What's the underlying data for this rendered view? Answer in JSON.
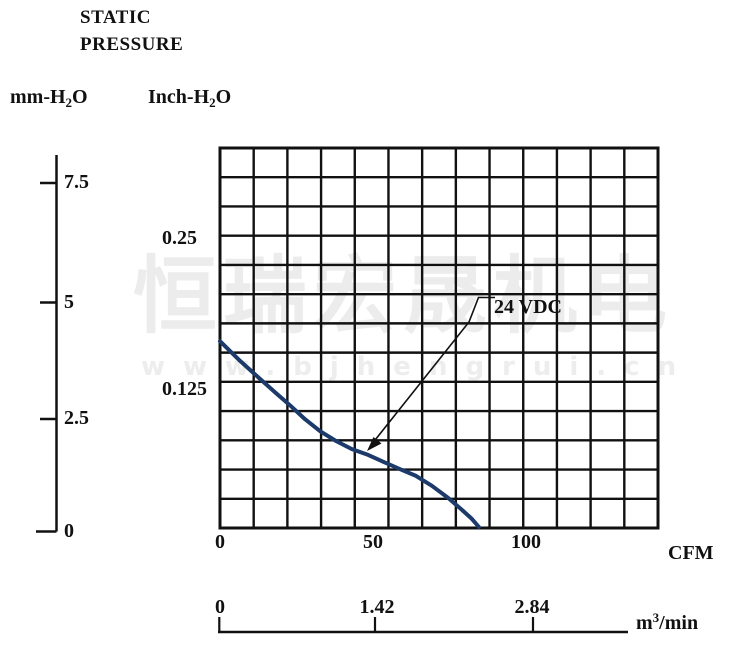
{
  "title": {
    "line1": "STATIC",
    "line2": "PRESSURE"
  },
  "axes": {
    "left_mm": {
      "label_pre": "mm-H",
      "label_sub": "2",
      "label_post": "O",
      "ticks": [
        "7.5",
        "5",
        "2.5",
        "0"
      ]
    },
    "inch": {
      "label_pre": "Inch-H",
      "label_sub": "2",
      "label_post": "O",
      "ticks": [
        "0.25",
        "0.125"
      ]
    },
    "x_cfm": {
      "ticks": [
        "0",
        "50",
        "100"
      ],
      "unit": "CFM"
    },
    "x_m3min": {
      "ticks": [
        "0",
        "1.42",
        "2.84"
      ],
      "unit_pre": "m",
      "unit_sup": "3",
      "unit_post": "/min"
    }
  },
  "annotation": {
    "label": "24 VDC"
  },
  "watermark": {
    "cjk": "恒瑞宏晟机电",
    "url": "www.bjhengrui.cn"
  },
  "chart_data": {
    "type": "line",
    "title": "STATIC PRESSURE",
    "xlabel": "CFM",
    "x2label": "m3/min",
    "ylabel": "mm-H2O",
    "y2label": "Inch-H2O",
    "x_ticks_cfm": [
      0,
      50,
      100
    ],
    "x2_ticks_m3min": [
      0,
      1.42,
      2.84
    ],
    "y_ticks_mm": [
      0,
      2.5,
      5,
      7.5
    ],
    "y2_ticks_inch": [
      0.125,
      0.25
    ],
    "x_range_cfm": [
      0,
      143
    ],
    "y_range_mm": [
      0,
      8.5
    ],
    "grid": {
      "cols": 13,
      "rows": 13,
      "on": true
    },
    "legend": "none",
    "series": [
      {
        "name": "24 VDC",
        "color": "#1c3a6a",
        "x_cfm": [
          0,
          6.6,
          12.4,
          18.0,
          22.9,
          27.8,
          32.8,
          38.0,
          43.2,
          48.5,
          53.7,
          59.0,
          64.2,
          69.4,
          74.7,
          79.3,
          82.5,
          84.8
        ],
        "y_mm_h2o": [
          4.24,
          3.8,
          3.44,
          3.1,
          2.81,
          2.5,
          2.23,
          2.01,
          1.83,
          1.7,
          1.54,
          1.38,
          1.23,
          1.01,
          0.74,
          0.47,
          0.27,
          0.09
        ]
      }
    ],
    "annotation": {
      "text": "24 VDC",
      "points_to_cfm": 48,
      "points_to_mm": 1.8
    }
  }
}
